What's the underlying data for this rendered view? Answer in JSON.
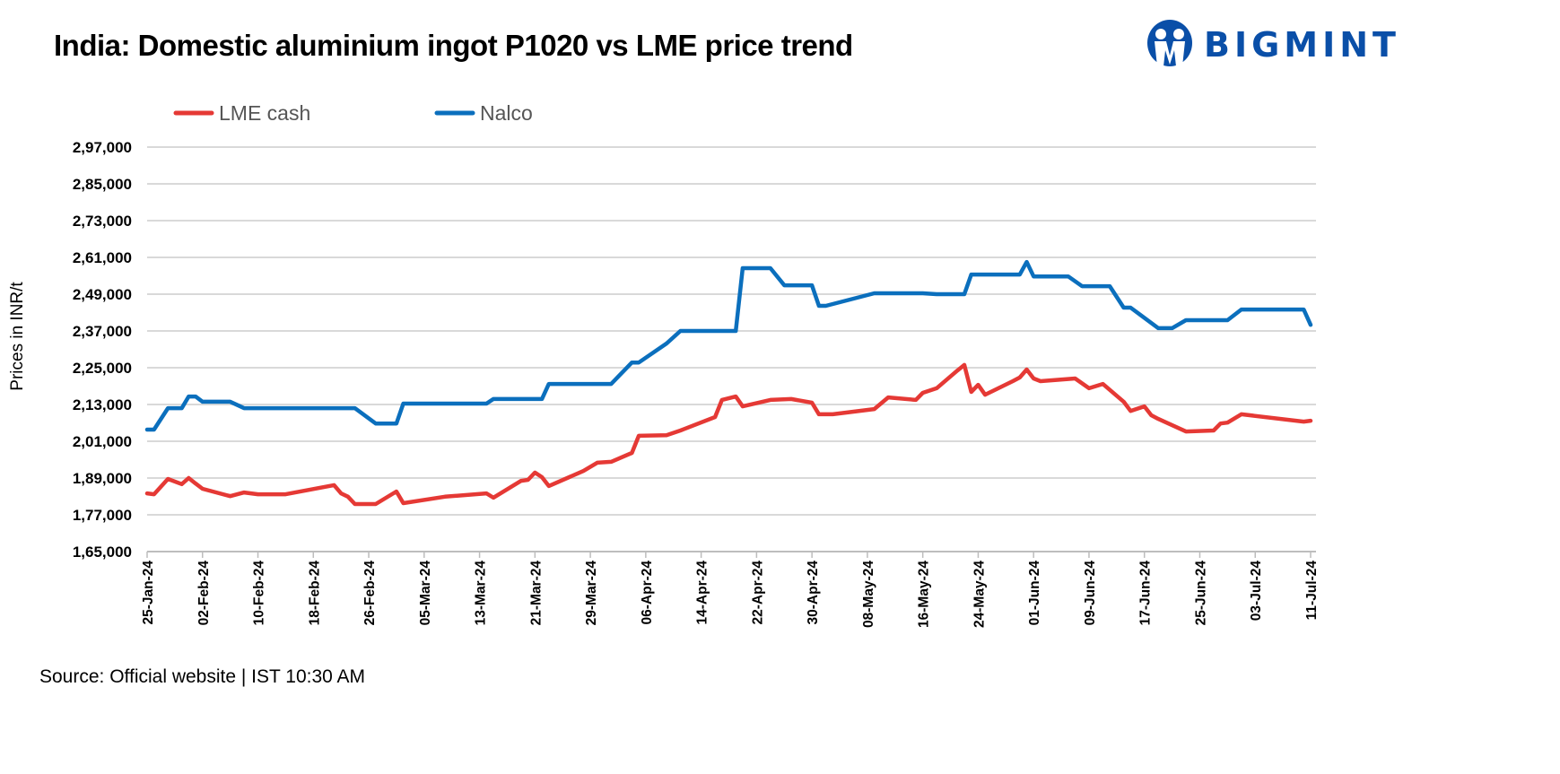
{
  "title": "India: Domestic aluminium ingot P1020 vs LME price trend",
  "logo": {
    "text": "BIGMINT",
    "color": "#0a4fa8"
  },
  "source": "Source: Official website | IST 10:30 AM",
  "chart_data": {
    "type": "line",
    "title": "India: Domestic aluminium ingot P1020 vs LME price trend",
    "xlabel": "",
    "ylabel": "Prices in INR/t",
    "xlim": [
      "2024-01-25",
      "2024-07-11"
    ],
    "ylim": [
      165000,
      297000
    ],
    "grid": "horizontal",
    "legend": "top-left",
    "yticks": [
      165000,
      177000,
      189000,
      201000,
      213000,
      225000,
      237000,
      249000,
      261000,
      273000,
      285000,
      297000
    ],
    "ytick_labels": [
      "1,65,000",
      "1,77,000",
      "1,89,000",
      "2,01,000",
      "2,13,000",
      "2,25,000",
      "2,37,000",
      "2,49,000",
      "2,61,000",
      "2,73,000",
      "2,85,000",
      "2,97,000"
    ],
    "xticks": [
      "2024-01-25",
      "2024-02-02",
      "2024-02-10",
      "2024-02-18",
      "2024-02-26",
      "2024-03-05",
      "2024-03-13",
      "2024-03-21",
      "2024-03-29",
      "2024-04-06",
      "2024-04-14",
      "2024-04-22",
      "2024-04-30",
      "2024-05-08",
      "2024-05-16",
      "2024-05-24",
      "2024-06-01",
      "2024-06-09",
      "2024-06-17",
      "2024-06-25",
      "2024-07-03",
      "2024-07-11"
    ],
    "xtick_labels": [
      "25-Jan-24",
      "02-Feb-24",
      "10-Feb-24",
      "18-Feb-24",
      "26-Feb-24",
      "05-Mar-24",
      "13-Mar-24",
      "21-Mar-24",
      "29-Mar-24",
      "06-Apr-24",
      "14-Apr-24",
      "22-Apr-24",
      "30-Apr-24",
      "08-May-24",
      "16-May-24",
      "24-May-24",
      "01-Jun-24",
      "09-Jun-24",
      "17-Jun-24",
      "25-Jun-24",
      "03-Jul-24",
      "11-Jul-24"
    ],
    "series": [
      {
        "name": "LME cash",
        "color": "#e53935",
        "points": [
          [
            "2024-01-25",
            184000
          ],
          [
            "2024-01-26",
            183700
          ],
          [
            "2024-01-28",
            188700
          ],
          [
            "2024-01-30",
            187000
          ],
          [
            "2024-01-31",
            189000
          ],
          [
            "2024-02-01",
            187200
          ],
          [
            "2024-02-02",
            185500
          ],
          [
            "2024-02-06",
            183100
          ],
          [
            "2024-02-08",
            184300
          ],
          [
            "2024-02-10",
            183700
          ],
          [
            "2024-02-14",
            183700
          ],
          [
            "2024-02-21",
            186700
          ],
          [
            "2024-02-22",
            184000
          ],
          [
            "2024-02-23",
            182900
          ],
          [
            "2024-02-24",
            180500
          ],
          [
            "2024-02-27",
            180500
          ],
          [
            "2024-03-01",
            184600
          ],
          [
            "2024-03-02",
            180800
          ],
          [
            "2024-03-08",
            182900
          ],
          [
            "2024-03-14",
            184000
          ],
          [
            "2024-03-15",
            182600
          ],
          [
            "2024-03-19",
            188100
          ],
          [
            "2024-03-20",
            188400
          ],
          [
            "2024-03-21",
            190800
          ],
          [
            "2024-03-22",
            189300
          ],
          [
            "2024-03-23",
            186400
          ],
          [
            "2024-03-28",
            191300
          ],
          [
            "2024-03-30",
            194000
          ],
          [
            "2024-04-01",
            194300
          ],
          [
            "2024-04-04",
            197200
          ],
          [
            "2024-04-05",
            202800
          ],
          [
            "2024-04-09",
            203000
          ],
          [
            "2024-04-11",
            204500
          ],
          [
            "2024-04-16",
            208900
          ],
          [
            "2024-04-17",
            214500
          ],
          [
            "2024-04-19",
            215600
          ],
          [
            "2024-04-20",
            212400
          ],
          [
            "2024-04-24",
            214500
          ],
          [
            "2024-04-27",
            214800
          ],
          [
            "2024-04-30",
            213600
          ],
          [
            "2024-05-01",
            209800
          ],
          [
            "2024-05-03",
            209800
          ],
          [
            "2024-05-09",
            211500
          ],
          [
            "2024-05-11",
            215300
          ],
          [
            "2024-05-15",
            214500
          ],
          [
            "2024-05-16",
            216800
          ],
          [
            "2024-05-18",
            218300
          ],
          [
            "2024-05-21",
            224100
          ],
          [
            "2024-05-22",
            225900
          ],
          [
            "2024-05-23",
            217100
          ],
          [
            "2024-05-24",
            219400
          ],
          [
            "2024-05-25",
            216200
          ],
          [
            "2024-05-29",
            220600
          ],
          [
            "2024-05-30",
            221800
          ],
          [
            "2024-05-31",
            224400
          ],
          [
            "2024-06-01",
            221500
          ],
          [
            "2024-06-02",
            220600
          ],
          [
            "2024-06-07",
            221500
          ],
          [
            "2024-06-09",
            218300
          ],
          [
            "2024-06-11",
            219700
          ],
          [
            "2024-06-14",
            213900
          ],
          [
            "2024-06-15",
            210900
          ],
          [
            "2024-06-17",
            212400
          ],
          [
            "2024-06-18",
            209500
          ],
          [
            "2024-06-19",
            208300
          ],
          [
            "2024-06-23",
            204200
          ],
          [
            "2024-06-27",
            204500
          ],
          [
            "2024-06-28",
            206800
          ],
          [
            "2024-06-29",
            207100
          ],
          [
            "2024-07-01",
            209800
          ],
          [
            "2024-07-10",
            207400
          ],
          [
            "2024-07-11",
            207700
          ]
        ]
      },
      {
        "name": "Nalco",
        "color": "#0b6fbd",
        "points": [
          [
            "2024-01-25",
            204800
          ],
          [
            "2024-01-26",
            204800
          ],
          [
            "2024-01-28",
            211800
          ],
          [
            "2024-01-30",
            211800
          ],
          [
            "2024-01-31",
            215600
          ],
          [
            "2024-02-01",
            215600
          ],
          [
            "2024-02-02",
            213900
          ],
          [
            "2024-02-06",
            213900
          ],
          [
            "2024-02-08",
            211800
          ],
          [
            "2024-02-24",
            211800
          ],
          [
            "2024-02-27",
            206800
          ],
          [
            "2024-03-01",
            206800
          ],
          [
            "2024-03-02",
            213300
          ],
          [
            "2024-03-14",
            213300
          ],
          [
            "2024-03-15",
            214800
          ],
          [
            "2024-03-22",
            214800
          ],
          [
            "2024-03-23",
            219700
          ],
          [
            "2024-04-01",
            219700
          ],
          [
            "2024-04-04",
            226700
          ],
          [
            "2024-04-05",
            226700
          ],
          [
            "2024-04-09",
            232900
          ],
          [
            "2024-04-11",
            237000
          ],
          [
            "2024-04-19",
            237000
          ],
          [
            "2024-04-20",
            257500
          ],
          [
            "2024-04-24",
            257500
          ],
          [
            "2024-04-26",
            251900
          ],
          [
            "2024-04-30",
            251900
          ],
          [
            "2024-05-01",
            245200
          ],
          [
            "2024-05-02",
            245200
          ],
          [
            "2024-05-09",
            249300
          ],
          [
            "2024-05-16",
            249300
          ],
          [
            "2024-05-18",
            249000
          ],
          [
            "2024-05-22",
            249000
          ],
          [
            "2024-05-23",
            255400
          ],
          [
            "2024-05-30",
            255400
          ],
          [
            "2024-05-31",
            259500
          ],
          [
            "2024-06-01",
            254800
          ],
          [
            "2024-06-06",
            254800
          ],
          [
            "2024-06-08",
            251600
          ],
          [
            "2024-06-12",
            251600
          ],
          [
            "2024-06-14",
            244600
          ],
          [
            "2024-06-15",
            244600
          ],
          [
            "2024-06-19",
            237900
          ],
          [
            "2024-06-21",
            237900
          ],
          [
            "2024-06-23",
            240500
          ],
          [
            "2024-06-29",
            240500
          ],
          [
            "2024-07-01",
            244000
          ],
          [
            "2024-07-10",
            244000
          ],
          [
            "2024-07-11",
            239000
          ]
        ]
      }
    ]
  }
}
